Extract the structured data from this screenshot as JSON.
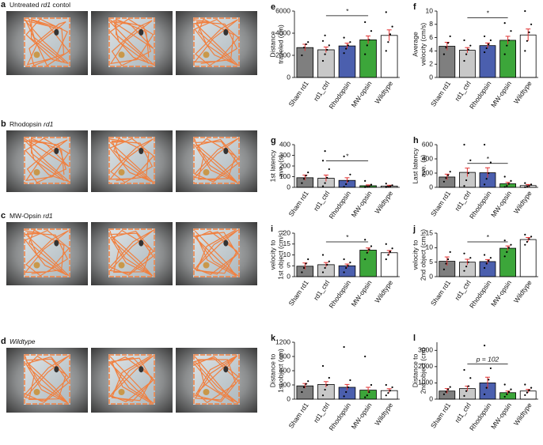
{
  "panels": [
    {
      "letter": "a",
      "title": [
        {
          "text": "Untreated ",
          "italic": false
        },
        {
          "text": "rd1",
          "italic": true
        },
        {
          "text": " contol",
          "italic": false
        }
      ]
    },
    {
      "letter": "b",
      "title": [
        {
          "text": "Rhodopsin ",
          "italic": false
        },
        {
          "text": "rd1",
          "italic": true
        }
      ]
    },
    {
      "letter": "c",
      "title": [
        {
          "text": "MW-Opsin ",
          "italic": false
        },
        {
          "text": "rd1",
          "italic": true
        }
      ]
    },
    {
      "letter": "d",
      "title": [
        {
          "text": "Wildtype",
          "italic": true
        }
      ]
    }
  ],
  "chart_data": [
    {
      "type": "bar",
      "letter": "e",
      "ylabel": [
        "Distance",
        "traveled (cm)"
      ],
      "categories": [
        "Sham rd1",
        "rd1_ctrl",
        "Rhodopsin",
        "MW-opsin",
        "Wildtype"
      ],
      "colors": [
        "#7f7f7f",
        "#c8c8c8",
        "#4b5fae",
        "#3ca63a",
        "#ffffff"
      ],
      "values": [
        2700,
        2500,
        2850,
        3400,
        3800
      ],
      "errors": [
        300,
        250,
        250,
        350,
        500
      ],
      "points": [
        [
          2000,
          2700,
          3000,
          3200
        ],
        [
          1500,
          2100,
          2500,
          2900,
          3300,
          3800
        ],
        [
          2200,
          2600,
          2900,
          3200,
          3600
        ],
        [
          2100,
          2900,
          3400,
          4200,
          5000
        ],
        [
          2400,
          3200,
          3900,
          4600,
          5900
        ]
      ],
      "ylim": [
        0,
        6000
      ],
      "yticks": [
        0,
        2000,
        4000,
        6000
      ],
      "annotation": "*"
    },
    {
      "type": "bar",
      "letter": "f",
      "ylabel": [
        "Average",
        "velocity (cm/s)"
      ],
      "categories": [
        "Sham rd1",
        "rd1_ctrl",
        "Rhodopsin",
        "MW-opsin",
        "Wildtype"
      ],
      "colors": [
        "#7f7f7f",
        "#c8c8c8",
        "#4b5fae",
        "#3ca63a",
        "#ffffff"
      ],
      "values": [
        4.7,
        4.1,
        4.8,
        5.6,
        6.4
      ],
      "errors": [
        0.6,
        0.4,
        0.4,
        0.6,
        0.9
      ],
      "points": [
        [
          3.5,
          4.5,
          5.2,
          6.2
        ],
        [
          2.5,
          3.5,
          4.2,
          4.8,
          5.6
        ],
        [
          3.8,
          4.4,
          5,
          5.6,
          6.2
        ],
        [
          3.5,
          4.8,
          5.6,
          7,
          8.2
        ],
        [
          4,
          5.5,
          6.8,
          8,
          10
        ]
      ],
      "ylim": [
        0,
        10
      ],
      "yticks": [
        0,
        2,
        4,
        6,
        8,
        10
      ],
      "annotation": "*"
    },
    {
      "type": "bar",
      "letter": "g",
      "ylabel": [
        "1st latency",
        "ave. (s)"
      ],
      "categories": [
        "Sham rd1",
        "rd1_ctrl",
        "Rhodopsin",
        "MW-opsin",
        "Wildtype"
      ],
      "colors": [
        "#7f7f7f",
        "#c8c8c8",
        "#4b5fae",
        "#3ca63a",
        "#ffffff"
      ],
      "values": [
        90,
        85,
        65,
        15,
        12
      ],
      "errors": [
        25,
        30,
        25,
        8,
        8
      ],
      "points": [
        [
          40,
          80,
          110,
          140
        ],
        [
          10,
          40,
          90,
          170,
          250,
          340
        ],
        [
          5,
          30,
          60,
          120,
          290
        ],
        [
          2,
          5,
          10,
          25,
          60
        ],
        [
          2,
          5,
          10,
          20,
          35
        ]
      ],
      "ylim": [
        0,
        400
      ],
      "yticks": [
        0,
        100,
        200,
        300,
        400
      ],
      "annotation": "*"
    },
    {
      "type": "bar",
      "letter": "h",
      "ylabel": [
        "Last latency",
        "ave. (s)"
      ],
      "categories": [
        "Sham rd1",
        "rd1_ctrl",
        "Rhodopsin",
        "MW-opsin",
        "Wildtype"
      ],
      "colors": [
        "#7f7f7f",
        "#c8c8c8",
        "#4b5fae",
        "#3ca63a",
        "#ffffff"
      ],
      "values": [
        145,
        210,
        205,
        50,
        25
      ],
      "errors": [
        40,
        60,
        70,
        20,
        15
      ],
      "points": [
        [
          80,
          130,
          170,
          220
        ],
        [
          20,
          100,
          200,
          380,
          600
        ],
        [
          40,
          120,
          200,
          350,
          600
        ],
        [
          5,
          20,
          50,
          90,
          150
        ],
        [
          3,
          10,
          20,
          40,
          60
        ]
      ],
      "ylim": [
        0,
        600
      ],
      "yticks": [
        0,
        200,
        400,
        600
      ],
      "annotation": "*"
    },
    {
      "type": "bar",
      "letter": "i",
      "ylabel": [
        "velocity to",
        "1st object (cm/s)"
      ],
      "categories": [
        "Sham rd1",
        "rd1_ctrl",
        "Rhodopsin",
        "MW-opsin",
        "Wildtype"
      ],
      "colors": [
        "#7f7f7f",
        "#c8c8c8",
        "#4b5fae",
        "#3ca63a",
        "#ffffff"
      ],
      "values": [
        4.8,
        5.5,
        5,
        12.2,
        11
      ],
      "errors": [
        1.5,
        1,
        0.8,
        1,
        1
      ],
      "points": [
        [
          2,
          4,
          6,
          8
        ],
        [
          2,
          4,
          5.5,
          7,
          10
        ],
        [
          2,
          4,
          5,
          6.5,
          8
        ],
        [
          8,
          11,
          12.5,
          14,
          17
        ],
        [
          8,
          10,
          11.5,
          13,
          15
        ]
      ],
      "ylim": [
        0,
        20
      ],
      "yticks": [
        0,
        5,
        10,
        15,
        20
      ],
      "annotation": "*"
    },
    {
      "type": "bar",
      "letter": "j",
      "ylabel": [
        "velocity to",
        "2nd object (cm/s)"
      ],
      "categories": [
        "Sham rd1",
        "rd1_ctrl",
        "Rhodopsin",
        "MW-opsin",
        "Wildtype"
      ],
      "colors": [
        "#7f7f7f",
        "#c8c8c8",
        "#4b5fae",
        "#3ca63a",
        "#ffffff"
      ],
      "values": [
        5.3,
        5,
        5.2,
        9.8,
        12.8
      ],
      "errors": [
        1.5,
        1,
        0.7,
        0.8,
        0.7
      ],
      "points": [
        [
          2.5,
          4.5,
          6,
          8.5
        ],
        [
          2,
          3.5,
          5,
          6.5,
          8
        ],
        [
          3,
          4.5,
          5.5,
          6.5,
          7.5
        ],
        [
          7,
          8.5,
          10,
          11,
          12.5
        ],
        [
          11,
          12,
          13,
          13.8,
          14.5
        ]
      ],
      "ylim": [
        0,
        15
      ],
      "yticks": [
        0,
        5,
        10,
        15
      ],
      "annotation": "*"
    },
    {
      "type": "bar",
      "letter": "k",
      "ylabel": [
        "Distance to",
        "1st object (cm)"
      ],
      "categories": [
        "Sham rd1",
        "rd1_ctrl",
        "Rhodopsin",
        "MW-opsin",
        "Wildtype"
      ],
      "colors": [
        "#7f7f7f",
        "#c8c8c8",
        "#4b5fae",
        "#3ca63a",
        "#ffffff"
      ],
      "values": [
        280,
        310,
        250,
        190,
        180
      ],
      "errors": [
        50,
        60,
        60,
        60,
        40
      ],
      "points": [
        [
          150,
          250,
          320,
          380
        ],
        [
          80,
          200,
          300,
          450,
          700
        ],
        [
          60,
          150,
          250,
          400,
          1100
        ],
        [
          40,
          80,
          150,
          300,
          900
        ],
        [
          80,
          130,
          180,
          250,
          300
        ]
      ],
      "ylim": [
        0,
        1200
      ],
      "yticks": [
        0,
        300,
        600,
        900,
        1200
      ]
    },
    {
      "type": "bar",
      "letter": "l",
      "ylabel": [
        "Distance to",
        "2nd object (cm)"
      ],
      "categories": [
        "Sham rd1",
        "rd1_ctrl",
        "Rhodopsin",
        "MW-opsin",
        "Wildtype"
      ],
      "colors": [
        "#7f7f7f",
        "#c8c8c8",
        "#4b5fae",
        "#3ca63a",
        "#ffffff"
      ],
      "values": [
        500,
        650,
        1000,
        400,
        500
      ],
      "errors": [
        150,
        150,
        350,
        100,
        100
      ],
      "points": [
        [
          300,
          450,
          600,
          750
        ],
        [
          200,
          500,
          800,
          1300,
          1800
        ],
        [
          300,
          700,
          1200,
          1900,
          3300
        ],
        [
          150,
          300,
          450,
          600,
          900
        ],
        [
          250,
          400,
          550,
          700,
          900
        ]
      ],
      "ylim": [
        0,
        3500
      ],
      "yticks": [
        0,
        1000,
        2000,
        3000
      ],
      "annotation": "p = 102"
    }
  ]
}
